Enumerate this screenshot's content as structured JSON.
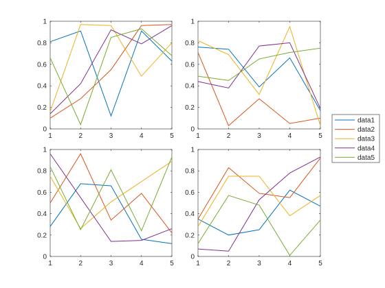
{
  "chart_data": [
    {
      "type": "line",
      "x": [
        1,
        2,
        3,
        4,
        5
      ],
      "xlim": [
        1,
        5
      ],
      "ylim": [
        0,
        1
      ],
      "xticks": [
        "1",
        "2",
        "3",
        "4",
        "5"
      ],
      "yticks": [
        "0",
        "0.2",
        "0.4",
        "0.6",
        "0.8",
        "1"
      ],
      "grid": false,
      "series": [
        {
          "name": "data1",
          "values": [
            0.81,
            0.91,
            0.12,
            0.91,
            0.63
          ]
        },
        {
          "name": "data2",
          "values": [
            0.1,
            0.28,
            0.55,
            0.96,
            0.97
          ]
        },
        {
          "name": "data3",
          "values": [
            0.16,
            0.97,
            0.96,
            0.49,
            0.8
          ]
        },
        {
          "name": "data4",
          "values": [
            0.14,
            0.42,
            0.92,
            0.79,
            0.96
          ]
        },
        {
          "name": "data5",
          "values": [
            0.66,
            0.04,
            0.85,
            0.93,
            0.68
          ]
        }
      ]
    },
    {
      "type": "line",
      "x": [
        1,
        2,
        3,
        4,
        5
      ],
      "xlim": [
        1,
        5
      ],
      "ylim": [
        0,
        1
      ],
      "xticks": [
        "1",
        "2",
        "3",
        "4",
        "5"
      ],
      "yticks": [
        "0",
        "0.2",
        "0.4",
        "0.6",
        "0.8",
        "1"
      ],
      "grid": false,
      "series": [
        {
          "name": "data1",
          "values": [
            0.76,
            0.74,
            0.39,
            0.66,
            0.17
          ]
        },
        {
          "name": "data2",
          "values": [
            0.71,
            0.03,
            0.28,
            0.05,
            0.1
          ]
        },
        {
          "name": "data3",
          "values": [
            0.82,
            0.69,
            0.32,
            0.95,
            0.03
          ]
        },
        {
          "name": "data4",
          "values": [
            0.44,
            0.38,
            0.77,
            0.8,
            0.19
          ]
        },
        {
          "name": "data5",
          "values": [
            0.49,
            0.45,
            0.65,
            0.71,
            0.75
          ]
        }
      ]
    },
    {
      "type": "line",
      "x": [
        1,
        2,
        3,
        4,
        5
      ],
      "xlim": [
        1,
        5
      ],
      "ylim": [
        0,
        1
      ],
      "xticks": [
        "1",
        "2",
        "3",
        "4",
        "5"
      ],
      "yticks": [
        "0",
        "0.2",
        "0.4",
        "0.6",
        "0.8",
        "1"
      ],
      "grid": false,
      "series": [
        {
          "name": "data1",
          "values": [
            0.28,
            0.68,
            0.66,
            0.16,
            0.12
          ]
        },
        {
          "name": "data2",
          "values": [
            0.5,
            0.96,
            0.34,
            0.59,
            0.22
          ]
        },
        {
          "name": "data3",
          "values": [
            0.75,
            0.26,
            0.51,
            0.7,
            0.89
          ]
        },
        {
          "name": "data4",
          "values": [
            0.96,
            0.55,
            0.14,
            0.15,
            0.26
          ]
        },
        {
          "name": "data5",
          "values": [
            0.84,
            0.25,
            0.81,
            0.24,
            0.93
          ]
        }
      ]
    },
    {
      "type": "line",
      "x": [
        1,
        2,
        3,
        4,
        5
      ],
      "xlim": [
        1,
        5
      ],
      "ylim": [
        0,
        1
      ],
      "xticks": [
        "1",
        "2",
        "3",
        "4",
        "5"
      ],
      "yticks": [
        "0",
        "0.2",
        "0.4",
        "0.6",
        "0.8",
        "1"
      ],
      "grid": false,
      "series": [
        {
          "name": "data1",
          "values": [
            0.35,
            0.2,
            0.25,
            0.62,
            0.47
          ]
        },
        {
          "name": "data2",
          "values": [
            0.35,
            0.83,
            0.59,
            0.55,
            0.92
          ]
        },
        {
          "name": "data3",
          "values": [
            0.28,
            0.75,
            0.75,
            0.38,
            0.57
          ]
        },
        {
          "name": "data4",
          "values": [
            0.07,
            0.05,
            0.53,
            0.78,
            0.93
          ]
        },
        {
          "name": "data5",
          "values": [
            0.12,
            0.57,
            0.48,
            0.01,
            0.34
          ]
        }
      ]
    }
  ],
  "legend": {
    "placement": "right",
    "items": [
      "data1",
      "data2",
      "data3",
      "data4",
      "data5"
    ]
  },
  "colors": {
    "data1": "#0072BD",
    "data2": "#D95319",
    "data3": "#EDB120",
    "data4": "#7E2F8E",
    "data5": "#77AC30",
    "axes": "#262626"
  }
}
